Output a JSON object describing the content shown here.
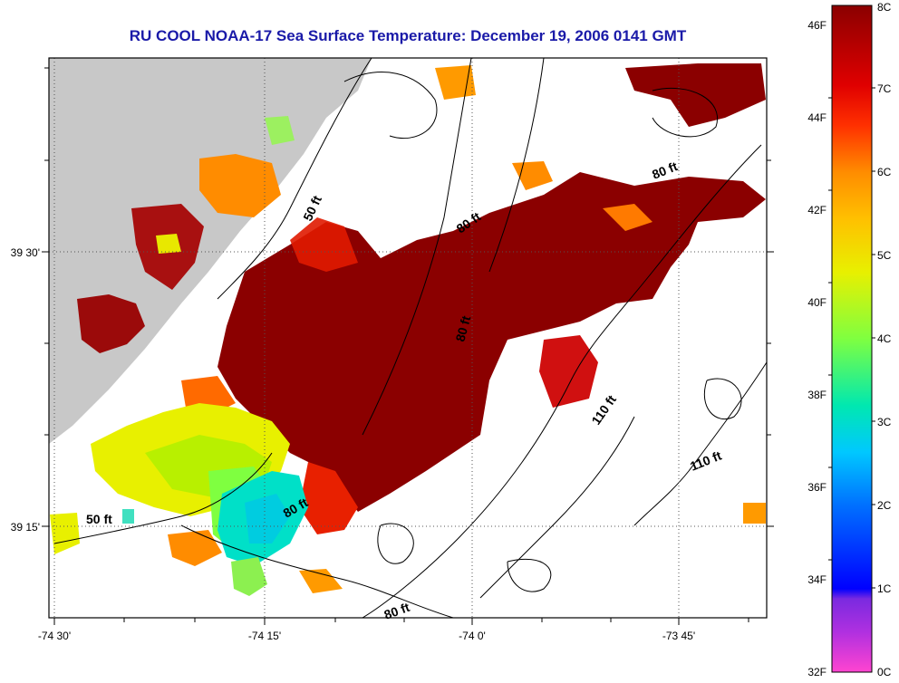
{
  "title": "RU COOL  NOAA-17  Sea Surface Temperature:  December 19, 2006 0141 GMT",
  "axes": {
    "x_ticks": [
      "-74 30'",
      "-74 15'",
      "-74 0'",
      "-73 45'"
    ],
    "y_ticks": [
      "39 30'",
      "39 15'"
    ]
  },
  "depth_labels": [
    "50 ft",
    "50 ft",
    "80 ft",
    "80 ft",
    "80 ft",
    "80 ft",
    "110 ft",
    "110 ft"
  ],
  "colorbar": {
    "fahrenheit": [
      "46F",
      "44F",
      "42F",
      "40F",
      "38F",
      "36F",
      "34F",
      "32F"
    ],
    "celsius": [
      "8C",
      "7C",
      "6C",
      "5C",
      "4C",
      "3C",
      "2C",
      "1C",
      "0C"
    ],
    "stops": [
      "#ff44d0",
      "#8a2be2",
      "#0000ff",
      "#00b4ff",
      "#00e0c8",
      "#7fff40",
      "#e8f000",
      "#ffd000",
      "#ff8c00",
      "#ff2a00",
      "#c80000",
      "#8b0000"
    ]
  },
  "colors": {
    "land": "#c8c8c8",
    "no_data": "#ffffff",
    "title": "#1a1aa8",
    "warm": "#8b0000"
  }
}
